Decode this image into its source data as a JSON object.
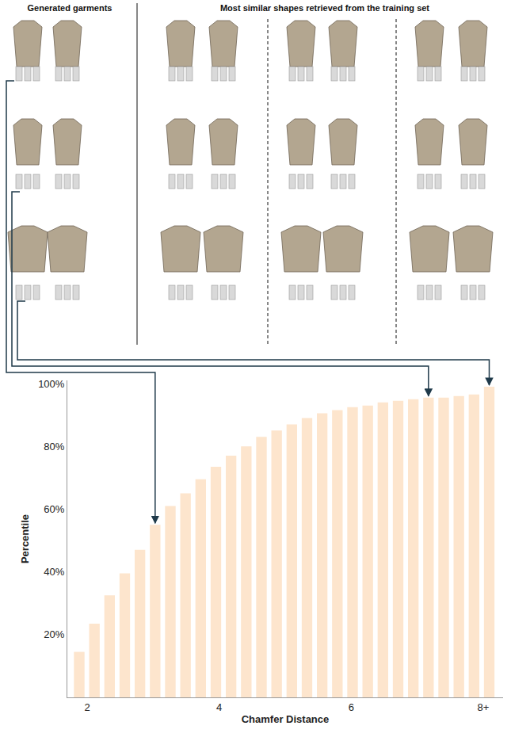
{
  "header": {
    "left": "Generated garments",
    "right": "Most similar shapes retrieved from the training set"
  },
  "chart_data": {
    "type": "bar",
    "x": [
      1.88,
      2.11,
      2.34,
      2.57,
      2.8,
      3.03,
      3.26,
      3.49,
      3.72,
      3.95,
      4.18,
      4.41,
      4.64,
      4.87,
      5.1,
      5.33,
      5.56,
      5.79,
      6.02,
      6.25,
      6.48,
      6.71,
      6.94,
      7.17,
      7.4,
      7.63,
      7.86,
      8.09
    ],
    "values": [
      14.5,
      23.5,
      32.5,
      39.5,
      47,
      55,
      61,
      65,
      69.5,
      73.5,
      77,
      80,
      83,
      85,
      87,
      89,
      90.5,
      91.5,
      92.5,
      93,
      94,
      94.5,
      95,
      95.5,
      95.5,
      96,
      96.5,
      99
    ],
    "color": "#fde5cd",
    "x_label": "Chamfer Distance",
    "y_label": "Percentile",
    "xlim": [
      1.7,
      8.3
    ],
    "xticks": [
      2,
      4,
      6,
      {
        "value": 8,
        "label": "8+"
      }
    ],
    "ylim": [
      0,
      101
    ],
    "yticks": [
      {
        "value": 20,
        "label": "20%"
      },
      {
        "value": 40,
        "label": "40%"
      },
      {
        "value": 60,
        "label": "60%"
      },
      {
        "value": 80,
        "label": "80%"
      },
      {
        "value": 100,
        "label": "100%"
      }
    ],
    "grid": false
  }
}
